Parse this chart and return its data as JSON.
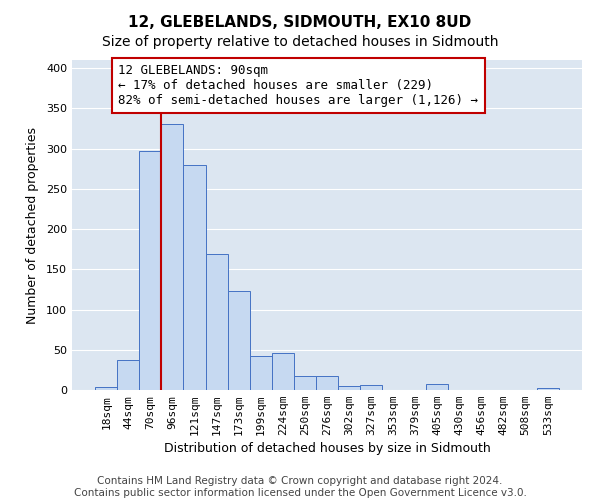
{
  "title": "12, GLEBELANDS, SIDMOUTH, EX10 8UD",
  "subtitle": "Size of property relative to detached houses in Sidmouth",
  "xlabel": "Distribution of detached houses by size in Sidmouth",
  "ylabel": "Number of detached properties",
  "bar_labels": [
    "18sqm",
    "44sqm",
    "70sqm",
    "96sqm",
    "121sqm",
    "147sqm",
    "173sqm",
    "199sqm",
    "224sqm",
    "250sqm",
    "276sqm",
    "302sqm",
    "327sqm",
    "353sqm",
    "379sqm",
    "405sqm",
    "430sqm",
    "456sqm",
    "482sqm",
    "508sqm",
    "533sqm"
  ],
  "bar_values": [
    4,
    37,
    297,
    330,
    279,
    169,
    123,
    42,
    46,
    17,
    17,
    5,
    6,
    0,
    0,
    7,
    0,
    0,
    0,
    0,
    2
  ],
  "bar_color": "#c6d9f1",
  "bar_edge_color": "#4472c4",
  "vline_x": 2.5,
  "vline_color": "#c00000",
  "annotation_text": "12 GLEBELANDS: 90sqm\n← 17% of detached houses are smaller (229)\n82% of semi-detached houses are larger (1,126) →",
  "annotation_box_edgecolor": "#c00000",
  "annotation_box_facecolor": "#ffffff",
  "ylim": [
    0,
    410
  ],
  "yticks": [
    0,
    50,
    100,
    150,
    200,
    250,
    300,
    350,
    400
  ],
  "footer_line1": "Contains HM Land Registry data © Crown copyright and database right 2024.",
  "footer_line2": "Contains public sector information licensed under the Open Government Licence v3.0.",
  "bg_color": "#ffffff",
  "plot_bg_color": "#dce6f1",
  "grid_color": "#ffffff",
  "title_fontsize": 11,
  "label_fontsize": 9,
  "tick_fontsize": 8,
  "annotation_fontsize": 9,
  "footer_fontsize": 7.5
}
